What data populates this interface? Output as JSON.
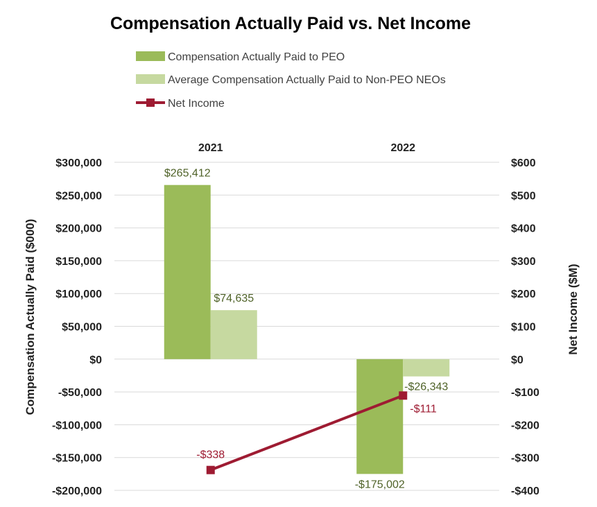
{
  "chart_data": {
    "type": "bar",
    "title": "Compensation Actually Paid vs. Net Income",
    "categories": [
      "2021",
      "2022"
    ],
    "series": [
      {
        "name": "Compensation Actually Paid to PEO",
        "type": "bar",
        "axis": "left",
        "color": "#9bbb59",
        "values": [
          265412,
          -175002
        ],
        "labels": [
          "$265,412",
          "-$175,002"
        ]
      },
      {
        "name": "Average Compensation Actually Paid to Non-PEO NEOs",
        "type": "bar",
        "axis": "left",
        "color": "#c6d9a0",
        "values": [
          74635,
          -26343
        ],
        "labels": [
          "$74,635",
          "-$26,343"
        ]
      },
      {
        "name": "Net Income",
        "type": "line",
        "axis": "right",
        "color": "#9e1b32",
        "values": [
          -338,
          -111
        ],
        "labels": [
          "-$338",
          "-$111"
        ]
      }
    ],
    "y_left": {
      "label": "Compensation Actually Paid ($000)",
      "range": [
        -200000,
        300000
      ],
      "ticks": [
        300000,
        250000,
        200000,
        150000,
        100000,
        50000,
        0,
        -50000,
        -100000,
        -150000,
        -200000
      ],
      "tick_labels": [
        "$300,000",
        "$250,000",
        "$200,000",
        "$150,000",
        "$100,000",
        "$50,000",
        "$0",
        "-$50,000",
        "-$100,000",
        "-$150,000",
        "-$200,000"
      ]
    },
    "y_right": {
      "label": "Net Income ($M)",
      "range": [
        -400,
        600
      ],
      "ticks": [
        600,
        500,
        400,
        300,
        200,
        100,
        0,
        -100,
        -200,
        -300,
        -400
      ],
      "tick_labels": [
        "$600",
        "$500",
        "$400",
        "$300",
        "$200",
        "$100",
        "$0",
        "-$100",
        "-$200",
        "-$300",
        "-$400"
      ]
    },
    "category_labels_position": "top",
    "grid": true,
    "legend": "top"
  }
}
